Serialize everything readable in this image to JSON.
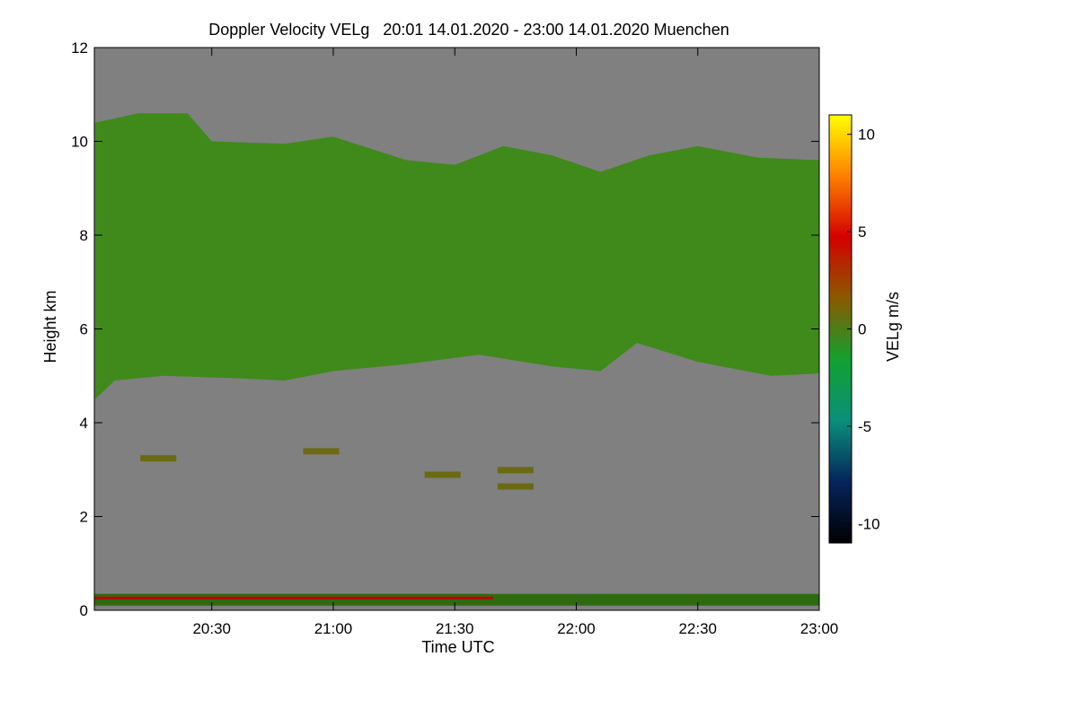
{
  "chart_data": {
    "type": "heatmap",
    "title": "Doppler Velocity VELg   20:01 14.01.2020 - 23:00 14.01.2020 Muenchen",
    "xlabel": "Time UTC",
    "ylabel": "Height km",
    "x_range": [
      "20:01",
      "23:00"
    ],
    "x_ticks": [
      "20:30",
      "21:00",
      "21:30",
      "22:00",
      "22:30",
      "23:00"
    ],
    "ylim": [
      0,
      12
    ],
    "y_ticks": [
      "0",
      "2",
      "4",
      "6",
      "8",
      "10",
      "12"
    ],
    "colorbar": {
      "label": "VELg m/s",
      "range": [
        -11,
        11
      ],
      "ticks": [
        "10",
        "5",
        "0",
        "-5",
        "-10"
      ],
      "colors": [
        "#000000",
        "#06245c",
        "#0a8f7a",
        "#12a030",
        "#8a5a00",
        "#d40000",
        "#ff8000",
        "#ffff00"
      ]
    },
    "background_color": "#808080",
    "cloud_color": "#3f8a1a",
    "cloud_layer": {
      "base_km": [
        [
          20.02,
          4.5
        ],
        [
          20.1,
          4.9
        ],
        [
          20.3,
          5.0
        ],
        [
          20.6,
          4.95
        ],
        [
          20.8,
          4.9
        ],
        [
          21.0,
          5.1
        ],
        [
          21.3,
          5.25
        ],
        [
          21.6,
          5.45
        ],
        [
          21.9,
          5.2
        ],
        [
          22.1,
          5.1
        ],
        [
          22.25,
          5.7
        ],
        [
          22.5,
          5.3
        ],
        [
          22.8,
          5.0
        ],
        [
          23.0,
          5.05
        ]
      ],
      "top_km": [
        [
          20.02,
          10.4
        ],
        [
          20.2,
          10.6
        ],
        [
          20.4,
          10.6
        ],
        [
          20.5,
          10.0
        ],
        [
          20.8,
          9.95
        ],
        [
          21.0,
          10.1
        ],
        [
          21.3,
          9.6
        ],
        [
          21.5,
          9.5
        ],
        [
          21.7,
          9.9
        ],
        [
          21.9,
          9.7
        ],
        [
          22.1,
          9.35
        ],
        [
          22.3,
          9.7
        ],
        [
          22.5,
          9.9
        ],
        [
          22.75,
          9.65
        ],
        [
          23.0,
          9.6
        ]
      ]
    },
    "minor_echoes": [
      {
        "t": 20.28,
        "h": 3.25
      },
      {
        "t": 20.95,
        "h": 3.4
      },
      {
        "t": 21.45,
        "h": 2.9
      },
      {
        "t": 21.75,
        "h": 3.0
      },
      {
        "t": 21.75,
        "h": 2.65
      }
    ],
    "near_surface_band_km": [
      0.1,
      0.35
    ]
  }
}
